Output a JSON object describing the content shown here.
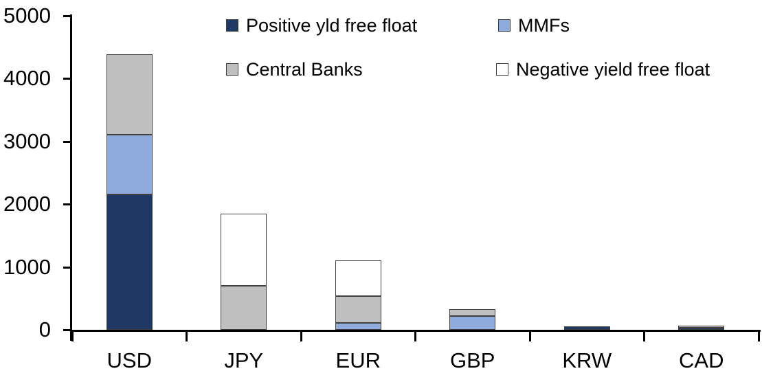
{
  "chart_data": {
    "type": "bar",
    "stacked": true,
    "title": "",
    "xlabel": "",
    "ylabel": "",
    "categories": [
      "USD",
      "JPY",
      "EUR",
      "GBP",
      "KRW",
      "CAD"
    ],
    "series": [
      {
        "name": "Positive yld free float",
        "color": "#1F3864",
        "border_color": "#404040",
        "values": [
          2150,
          0,
          0,
          0,
          50,
          30
        ]
      },
      {
        "name": "MMFs",
        "color": "#8FAADC",
        "border_color": "#404040",
        "values": [
          950,
          0,
          110,
          220,
          0,
          0
        ]
      },
      {
        "name": "Central Banks",
        "color": "#BFBFBF",
        "border_color": "#404040",
        "values": [
          1280,
          700,
          430,
          110,
          0,
          30
        ]
      },
      {
        "name": "Negative yield free float",
        "color": "#FFFFFF",
        "border_color": "#404040",
        "values": [
          0,
          1150,
          570,
          0,
          0,
          0
        ]
      }
    ],
    "totals": [
      4380,
      1850,
      1110,
      330,
      50,
      60
    ],
    "ylim": [
      0,
      5000
    ],
    "yticks": [
      0,
      1000,
      2000,
      3000,
      4000,
      5000
    ],
    "grid": false,
    "legend_position": "top",
    "axis_color": "#000000",
    "background_color": "#FFFFFF"
  }
}
